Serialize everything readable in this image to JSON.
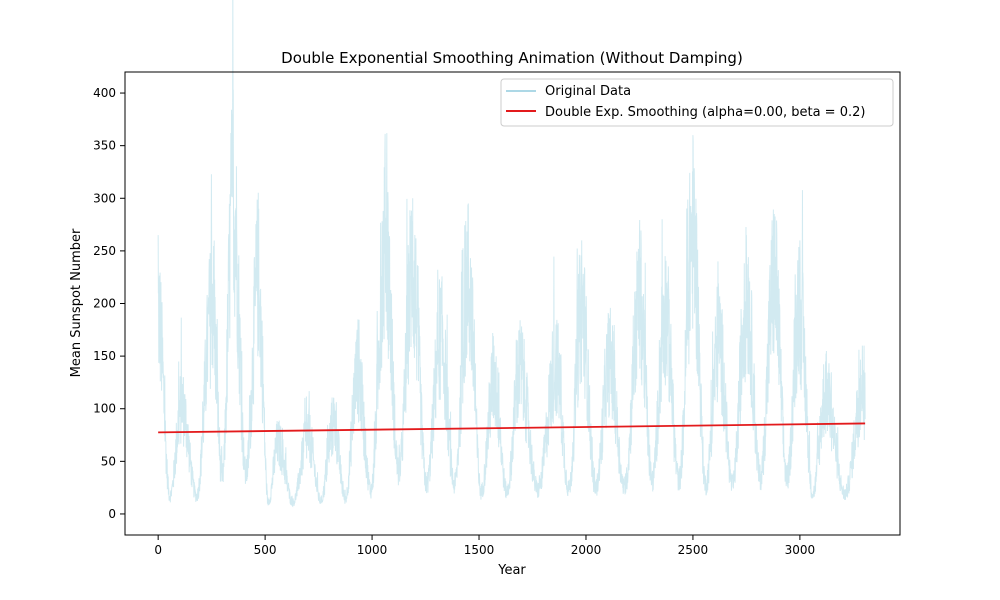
{
  "chart_data": {
    "type": "line",
    "title": "Double Exponential Smoothing Animation (Without Damping)",
    "xlabel": "Year",
    "ylabel": "Mean Sunspot Number",
    "xlim": [
      -155,
      3468
    ],
    "ylim": [
      -20,
      420
    ],
    "xticks": [
      0,
      500,
      1000,
      1500,
      2000,
      2500,
      3000
    ],
    "yticks": [
      0,
      50,
      100,
      150,
      200,
      250,
      300,
      350,
      400
    ],
    "grid": false,
    "legend_position": "top-right",
    "x_extent": [
      0,
      3305
    ],
    "series": [
      {
        "name": "Original Data",
        "color": "#add8e6",
        "cycle_peaks": [
          [
            0,
            265
          ],
          [
            110,
            130
          ],
          [
            250,
            265
          ],
          [
            350,
            400
          ],
          [
            470,
            290
          ],
          [
            560,
            85
          ],
          [
            700,
            95
          ],
          [
            820,
            110
          ],
          [
            930,
            175
          ],
          [
            1060,
            345
          ],
          [
            1190,
            300
          ],
          [
            1320,
            215
          ],
          [
            1450,
            295
          ],
          [
            1570,
            160
          ],
          [
            1690,
            175
          ],
          [
            1860,
            180
          ],
          [
            1980,
            260
          ],
          [
            2110,
            185
          ],
          [
            2250,
            265
          ],
          [
            2370,
            245
          ],
          [
            2500,
            360
          ],
          [
            2620,
            210
          ],
          [
            2750,
            265
          ],
          [
            2880,
            285
          ],
          [
            3000,
            260
          ],
          [
            3120,
            145
          ],
          [
            3300,
            160
          ]
        ]
      },
      {
        "name": "Double Exp. Smoothing (alpha=0.00, beta = 0.2)",
        "color": "#e31a1c",
        "x": [
          0,
          3305
        ],
        "values": [
          77.5,
          86
        ]
      }
    ]
  }
}
